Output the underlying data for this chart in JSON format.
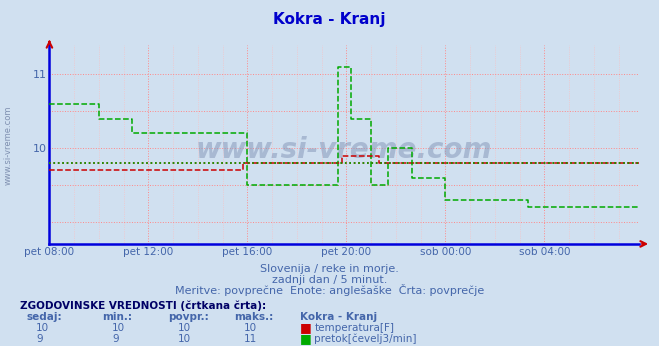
{
  "title": "Kokra - Kranj",
  "title_color": "#0000cc",
  "bg_color": "#d0e0f0",
  "watermark": "www.si-vreme.com",
  "subtitle1": "Slovenija / reke in morje.",
  "subtitle2": "zadnji dan / 5 minut.",
  "subtitle3": "Meritve: povprečne  Enote: anglešaške  Črta: povprečje",
  "table_title": "ZGODOVINSKE VREDNOSTI (črtkana črta):",
  "table_headers": [
    "sedaj:",
    "min.:",
    "povpr.:",
    "maks.:",
    "Kokra - Kranj"
  ],
  "table_row1": [
    10,
    10,
    10,
    10,
    "temperatura[F]"
  ],
  "table_row2": [
    9,
    9,
    10,
    11,
    "pretok[čevelj3/min]"
  ],
  "temp_color": "#cc0000",
  "flow_color": "#00aa00",
  "ylim_min": 8.7,
  "ylim_max": 11.4,
  "yticks": [
    10,
    11
  ],
  "text_color": "#4466aa",
  "xtick_labels": [
    "pet 08:00",
    "pet 12:00",
    "pet 16:00",
    "pet 20:00",
    "sob 00:00",
    "sob 04:00"
  ],
  "xtick_positions": [
    0,
    24,
    48,
    72,
    96,
    120
  ],
  "total_points": 144,
  "avg_temp": 9.8,
  "avg_flow": 9.8,
  "temp_data": [
    9.7,
    9.7,
    9.7,
    9.7,
    9.7,
    9.7,
    9.7,
    9.7,
    9.7,
    9.7,
    9.7,
    9.7,
    9.7,
    9.7,
    9.7,
    9.7,
    9.7,
    9.7,
    9.7,
    9.7,
    9.7,
    9.7,
    9.7,
    9.7,
    9.7,
    9.7,
    9.7,
    9.7,
    9.7,
    9.7,
    9.7,
    9.7,
    9.7,
    9.7,
    9.7,
    9.7,
    9.7,
    9.7,
    9.7,
    9.7,
    9.7,
    9.7,
    9.7,
    9.7,
    9.7,
    9.7,
    9.7,
    9.8,
    9.8,
    9.8,
    9.8,
    9.8,
    9.8,
    9.8,
    9.8,
    9.8,
    9.8,
    9.8,
    9.8,
    9.8,
    9.8,
    9.8,
    9.8,
    9.8,
    9.8,
    9.8,
    9.8,
    9.8,
    9.8,
    9.8,
    9.8,
    9.9,
    9.9,
    9.9,
    9.9,
    9.9,
    9.9,
    9.9,
    9.9,
    9.9,
    9.8,
    9.8,
    9.8,
    9.8,
    9.8,
    9.8,
    9.8,
    9.8,
    9.8,
    9.8,
    9.8,
    9.8,
    9.8,
    9.8,
    9.8,
    9.8,
    9.8,
    9.8,
    9.8,
    9.8,
    9.8,
    9.8,
    9.8,
    9.8,
    9.8,
    9.8,
    9.8,
    9.8,
    9.8,
    9.8,
    9.8,
    9.8,
    9.8,
    9.8,
    9.8,
    9.8,
    9.8,
    9.8,
    9.8,
    9.8,
    9.8,
    9.8,
    9.8,
    9.8,
    9.8,
    9.8,
    9.8,
    9.8,
    9.8,
    9.8,
    9.8,
    9.8,
    9.8,
    9.8,
    9.8,
    9.8,
    9.8,
    9.8,
    9.8,
    9.8,
    9.8,
    9.8,
    9.8,
    9.8
  ],
  "flow_data": [
    10.6,
    10.6,
    10.6,
    10.6,
    10.6,
    10.6,
    10.6,
    10.6,
    10.6,
    10.6,
    10.6,
    10.6,
    10.4,
    10.4,
    10.4,
    10.4,
    10.4,
    10.4,
    10.4,
    10.4,
    10.2,
    10.2,
    10.2,
    10.2,
    10.2,
    10.2,
    10.2,
    10.2,
    10.2,
    10.2,
    10.2,
    10.2,
    10.2,
    10.2,
    10.2,
    10.2,
    10.2,
    10.2,
    10.2,
    10.2,
    10.2,
    10.2,
    10.2,
    10.2,
    10.2,
    10.2,
    10.2,
    10.2,
    9.5,
    9.5,
    9.5,
    9.5,
    9.5,
    9.5,
    9.5,
    9.5,
    9.5,
    9.5,
    9.5,
    9.5,
    9.5,
    9.5,
    9.5,
    9.5,
    9.5,
    9.5,
    9.5,
    9.5,
    9.5,
    9.5,
    11.1,
    11.1,
    11.1,
    10.4,
    10.4,
    10.4,
    10.4,
    10.4,
    9.5,
    9.5,
    9.5,
    9.5,
    10.0,
    10.0,
    10.0,
    10.0,
    10.0,
    10.0,
    9.6,
    9.6,
    9.6,
    9.6,
    9.6,
    9.6,
    9.6,
    9.6,
    9.3,
    9.3,
    9.3,
    9.3,
    9.3,
    9.3,
    9.3,
    9.3,
    9.3,
    9.3,
    9.3,
    9.3,
    9.3,
    9.3,
    9.3,
    9.3,
    9.3,
    9.3,
    9.3,
    9.3,
    9.2,
    9.2,
    9.2,
    9.2,
    9.2,
    9.2,
    9.2,
    9.2,
    9.2,
    9.2,
    9.2,
    9.2,
    9.2,
    9.2,
    9.2,
    9.2,
    9.2,
    9.2,
    9.2,
    9.2,
    9.2,
    9.2,
    9.2,
    9.2,
    9.2,
    9.2,
    9.2,
    9.2
  ]
}
